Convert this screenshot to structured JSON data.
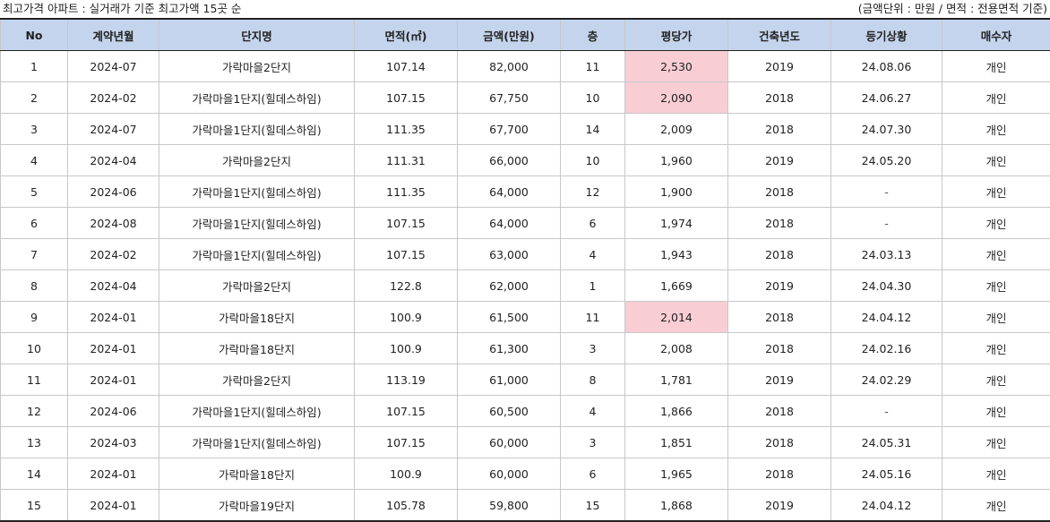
{
  "header": {
    "title": "최고가격 아파트 : 실거래가  기준 최고가액 15곳 순",
    "unit_note": "(금액단위 : 만원 / 면적 : 전용면적 기준)"
  },
  "table": {
    "columns": [
      "No",
      "계약년월",
      "단지명",
      "면적(㎡)",
      "금액(만원)",
      "층",
      "평당가",
      "건축년도",
      "등기상황",
      "매수자"
    ],
    "rows": [
      {
        "no": "1",
        "month": "2024-07",
        "complex": "가락마을2단지",
        "area": "107.14",
        "price": "82,000",
        "floor": "11",
        "pyeong": "2,530",
        "built": "2019",
        "reg": "24.08.06",
        "buyer": "개인",
        "highlight": true
      },
      {
        "no": "2",
        "month": "2024-02",
        "complex": "가락마을1단지(힐데스하임)",
        "area": "107.15",
        "price": "67,750",
        "floor": "10",
        "pyeong": "2,090",
        "built": "2018",
        "reg": "24.06.27",
        "buyer": "개인",
        "highlight": true
      },
      {
        "no": "3",
        "month": "2024-07",
        "complex": "가락마을1단지(힐데스하임)",
        "area": "111.35",
        "price": "67,700",
        "floor": "14",
        "pyeong": "2,009",
        "built": "2018",
        "reg": "24.07.30",
        "buyer": "개인",
        "highlight": false
      },
      {
        "no": "4",
        "month": "2024-04",
        "complex": "가락마을2단지",
        "area": "111.31",
        "price": "66,000",
        "floor": "10",
        "pyeong": "1,960",
        "built": "2019",
        "reg": "24.05.20",
        "buyer": "개인",
        "highlight": false
      },
      {
        "no": "5",
        "month": "2024-06",
        "complex": "가락마을1단지(힐데스하임)",
        "area": "111.35",
        "price": "64,000",
        "floor": "12",
        "pyeong": "1,900",
        "built": "2018",
        "reg": "-",
        "buyer": "개인",
        "highlight": false
      },
      {
        "no": "6",
        "month": "2024-08",
        "complex": "가락마을1단지(힐데스하임)",
        "area": "107.15",
        "price": "64,000",
        "floor": "6",
        "pyeong": "1,974",
        "built": "2018",
        "reg": "-",
        "buyer": "개인",
        "highlight": false
      },
      {
        "no": "7",
        "month": "2024-02",
        "complex": "가락마을1단지(힐데스하임)",
        "area": "107.15",
        "price": "63,000",
        "floor": "4",
        "pyeong": "1,943",
        "built": "2018",
        "reg": "24.03.13",
        "buyer": "개인",
        "highlight": false
      },
      {
        "no": "8",
        "month": "2024-04",
        "complex": "가락마을2단지",
        "area": "122.8",
        "price": "62,000",
        "floor": "1",
        "pyeong": "1,669",
        "built": "2019",
        "reg": "24.04.30",
        "buyer": "개인",
        "highlight": false
      },
      {
        "no": "9",
        "month": "2024-01",
        "complex": "가락마을18단지",
        "area": "100.9",
        "price": "61,500",
        "floor": "11",
        "pyeong": "2,014",
        "built": "2018",
        "reg": "24.04.12",
        "buyer": "개인",
        "highlight": true
      },
      {
        "no": "10",
        "month": "2024-01",
        "complex": "가락마을18단지",
        "area": "100.9",
        "price": "61,300",
        "floor": "3",
        "pyeong": "2,008",
        "built": "2018",
        "reg": "24.02.16",
        "buyer": "개인",
        "highlight": false
      },
      {
        "no": "11",
        "month": "2024-01",
        "complex": "가락마을2단지",
        "area": "113.19",
        "price": "61,000",
        "floor": "8",
        "pyeong": "1,781",
        "built": "2019",
        "reg": "24.02.29",
        "buyer": "개인",
        "highlight": false
      },
      {
        "no": "12",
        "month": "2024-06",
        "complex": "가락마을1단지(힐데스하임)",
        "area": "107.15",
        "price": "60,500",
        "floor": "4",
        "pyeong": "1,866",
        "built": "2018",
        "reg": "-",
        "buyer": "개인",
        "highlight": false
      },
      {
        "no": "13",
        "month": "2024-03",
        "complex": "가락마을1단지(힐데스하임)",
        "area": "107.15",
        "price": "60,000",
        "floor": "3",
        "pyeong": "1,851",
        "built": "2018",
        "reg": "24.05.31",
        "buyer": "개인",
        "highlight": false
      },
      {
        "no": "14",
        "month": "2024-01",
        "complex": "가락마을18단지",
        "area": "100.9",
        "price": "60,000",
        "floor": "6",
        "pyeong": "1,965",
        "built": "2018",
        "reg": "24.05.16",
        "buyer": "개인",
        "highlight": false
      },
      {
        "no": "15",
        "month": "2024-01",
        "complex": "가락마을19단지",
        "area": "105.78",
        "price": "59,800",
        "floor": "15",
        "pyeong": "1,868",
        "built": "2019",
        "reg": "24.04.12",
        "buyer": "개인",
        "highlight": false
      }
    ]
  },
  "colors": {
    "header_bg": "#c4d4ec",
    "highlight_bg": "#f9cdd4",
    "grid_line": "#c8c8c8",
    "frame_line": "#222222"
  }
}
